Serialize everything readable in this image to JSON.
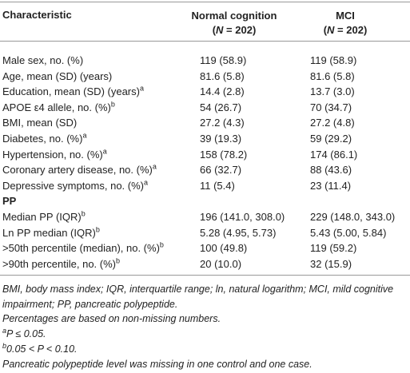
{
  "header": {
    "characteristic": "Characteristic",
    "columns": [
      {
        "title": "Normal cognition",
        "n_parts": [
          "(",
          "N",
          " = 202)"
        ]
      },
      {
        "title": "MCI",
        "n_parts": [
          "(",
          "N",
          " = 202)"
        ]
      }
    ]
  },
  "table": {
    "rows": [
      {
        "label": "Male sex, no. (%)",
        "values": [
          "119 (58.9)",
          "119 (58.9)"
        ]
      },
      {
        "label": "Age, mean (SD) (years)",
        "values": [
          "81.6 (5.8)",
          "81.6 (5.8)"
        ]
      },
      {
        "label": "Education, mean (SD) (years)",
        "sup": "a",
        "values": [
          "14.4 (2.8)",
          "13.7 (3.0)"
        ]
      },
      {
        "label": "APOE ε4 allele, no. (%)",
        "sup": "b",
        "values": [
          "54 (26.7)",
          "70 (34.7)"
        ]
      },
      {
        "label": "BMI, mean (SD)",
        "values": [
          "27.2 (4.3)",
          "27.2 (4.8)"
        ]
      },
      {
        "label": "Diabetes, no. (%)",
        "sup": "a",
        "values": [
          "39 (19.3)",
          "59 (29.2)"
        ]
      },
      {
        "label": "Hypertension, no. (%)",
        "sup": "a",
        "values": [
          "158 (78.2)",
          "174 (86.1)"
        ]
      },
      {
        "label": "Coronary artery disease, no. (%)",
        "sup": "a",
        "values": [
          "66 (32.7)",
          "88 (43.6)"
        ]
      },
      {
        "label": "Depressive symptoms, no. (%)",
        "sup": "a",
        "values": [
          "11 (5.4)",
          "23 (11.4)"
        ]
      },
      {
        "label": "PP"
      },
      {
        "label": "Median PP (IQR)",
        "sup": "b",
        "values": [
          "196 (141.0, 308.0)",
          "229 (148.0, 343.0)"
        ]
      },
      {
        "label": "Ln PP median (IQR)",
        "sup": "b",
        "values": [
          "5.28 (4.95, 5.73)",
          "5.43 (5.00, 5.84)"
        ]
      },
      {
        "label": ">50th percentile (median), no. (%)",
        "sup": "b",
        "values": [
          "100 (49.8)",
          "119 (59.2)"
        ]
      },
      {
        "label": ">90th percentile, no. (%)",
        "sup": "b",
        "values": [
          "20 (10.0)",
          "32 (15.9)"
        ]
      }
    ]
  },
  "footnotes": [
    {
      "text": "BMI, body mass index; IQR, interquartile range; ln, natural logarithm; MCI, mild cognitive impairment; PP, pancreatic polypeptide."
    },
    {
      "text": "Percentages are based on non-missing numbers."
    },
    {
      "mark": "a",
      "text": "P ≤ 0.05."
    },
    {
      "mark": "b",
      "text": "0.05 < P < 0.10."
    },
    {
      "text": "Pancreatic polypeptide level was missing in one control and one case."
    }
  ]
}
